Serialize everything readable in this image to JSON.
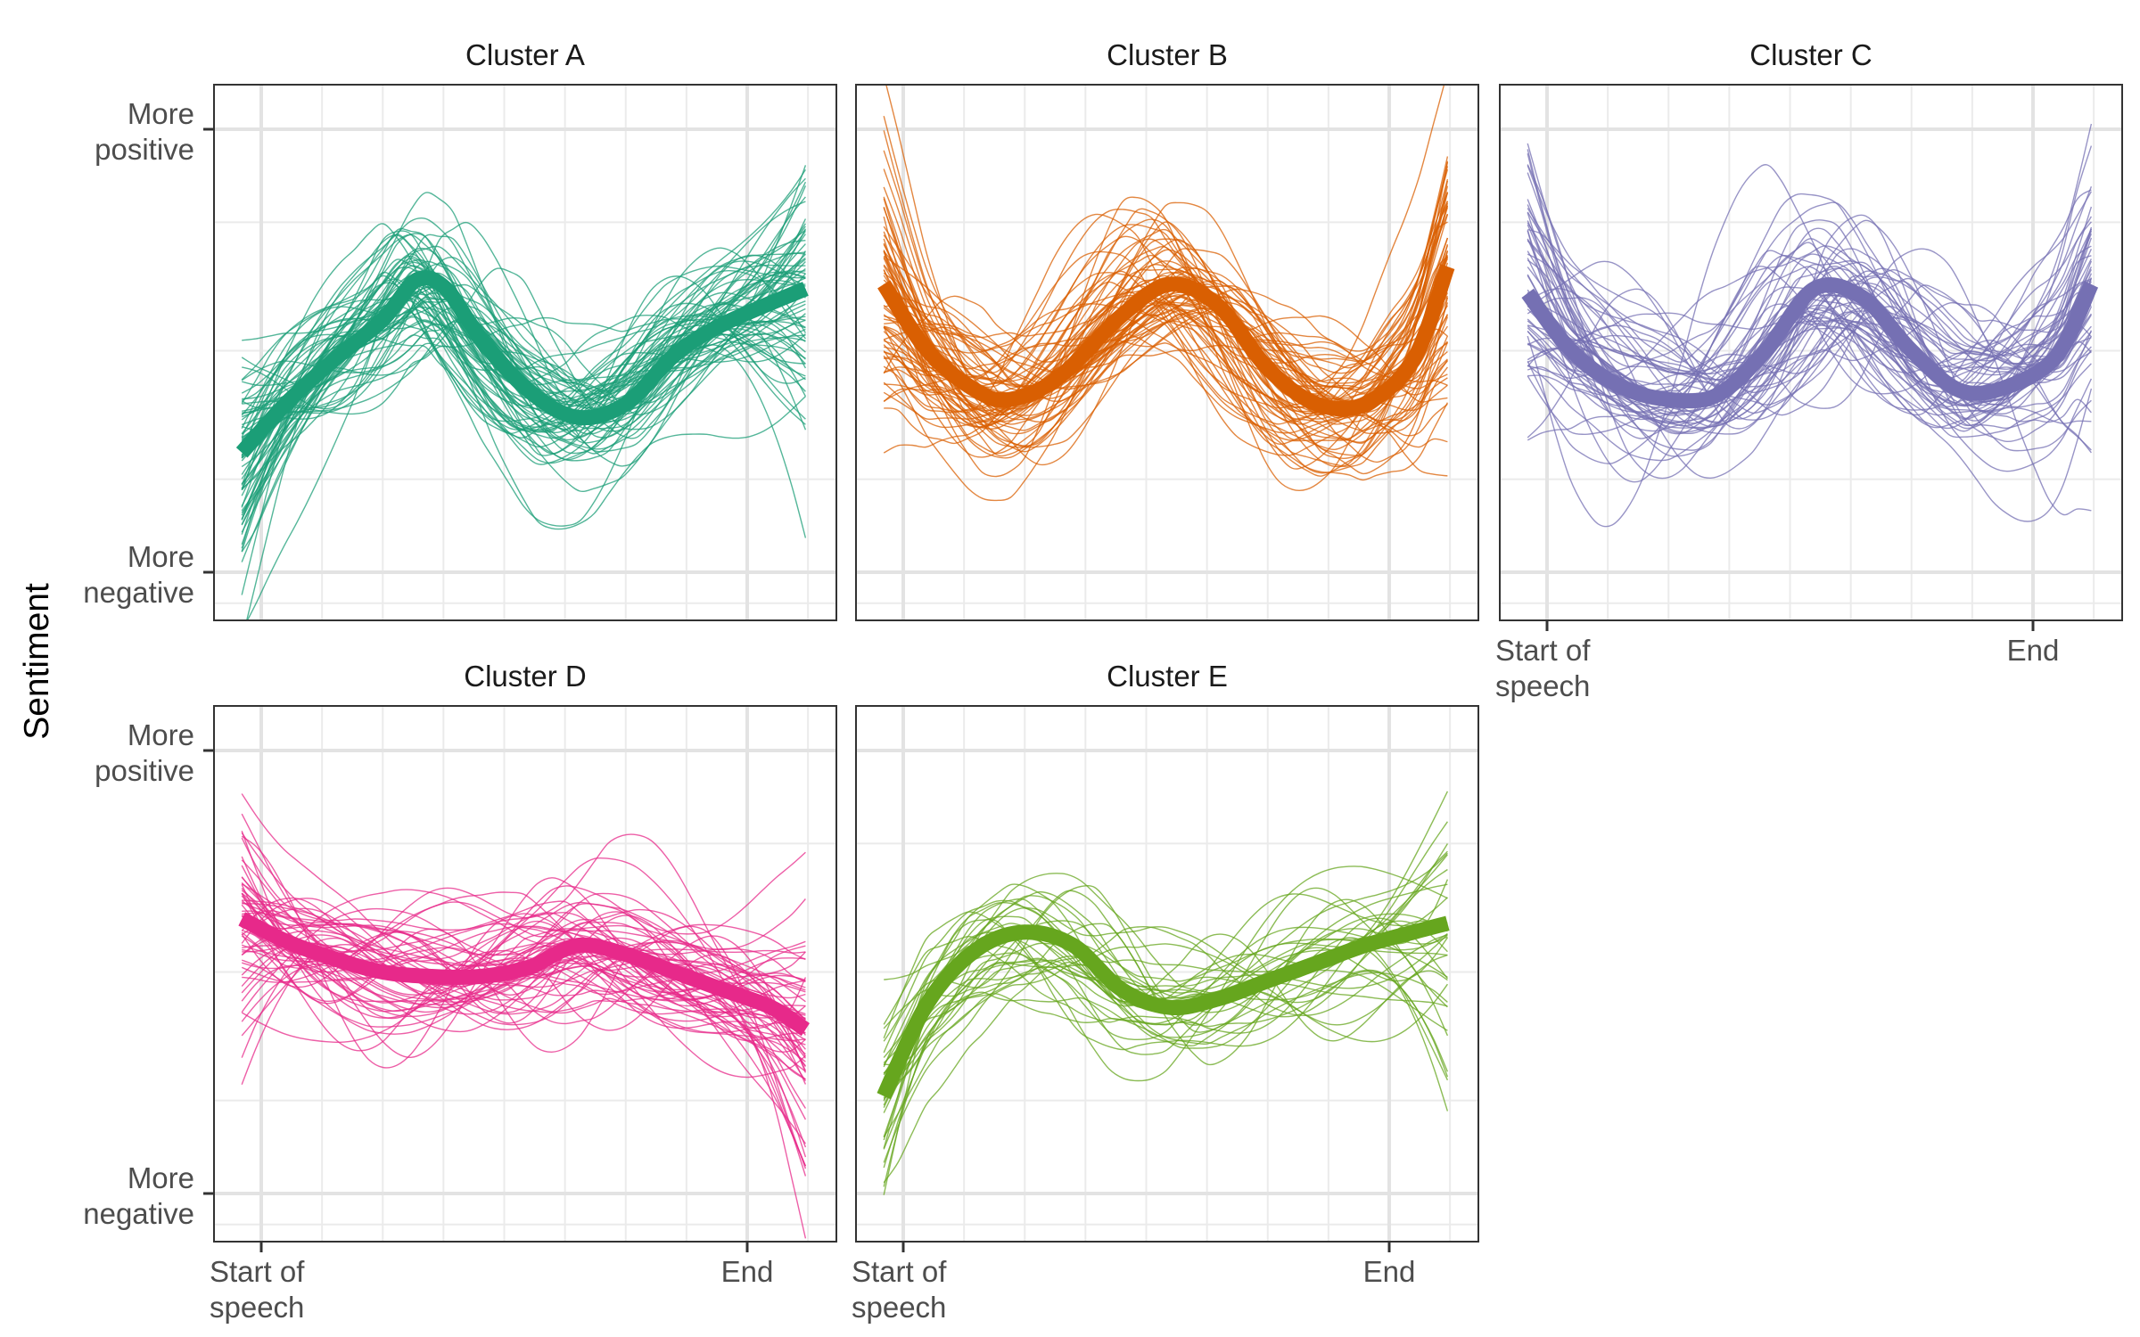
{
  "chart_data": {
    "type": "line",
    "facet_by": "cluster",
    "layout": "3 columns x 2 rows",
    "ylabel": "Sentiment",
    "xlabel": "",
    "x_range": [
      0,
      1
    ],
    "y_range": [
      0,
      1
    ],
    "x_ticks": [
      {
        "value": 0.0,
        "label": "Start of\nspeech"
      },
      {
        "value": 1.0,
        "label": "End"
      }
    ],
    "y_ticks": [
      {
        "value": 0.0,
        "label": "More\nnegative"
      },
      {
        "value": 1.0,
        "label": "More\npositive"
      }
    ],
    "individual_lines": "thin semi-transparent line per speech in cluster color",
    "mean_line": "thick line in cluster color",
    "grid": true,
    "panels": [
      {
        "title": "Cluster A",
        "color": "#1b9e77",
        "individual_count": 70,
        "mean": {
          "x": [
            -0.04,
            0.05,
            0.15,
            0.25,
            0.32,
            0.38,
            0.45,
            0.55,
            0.65,
            0.75,
            0.85,
            0.95,
            1.12
          ],
          "y": [
            0.27,
            0.38,
            0.48,
            0.57,
            0.66,
            0.64,
            0.53,
            0.41,
            0.35,
            0.38,
            0.49,
            0.56,
            0.64
          ]
        }
      },
      {
        "title": "Cluster B",
        "color": "#d95f02",
        "individual_count": 70,
        "mean": {
          "x": [
            -0.04,
            0.05,
            0.15,
            0.22,
            0.32,
            0.45,
            0.55,
            0.65,
            0.75,
            0.85,
            0.95,
            1.05,
            1.12
          ],
          "y": [
            0.65,
            0.5,
            0.41,
            0.39,
            0.44,
            0.58,
            0.65,
            0.6,
            0.46,
            0.38,
            0.38,
            0.48,
            0.69
          ]
        }
      },
      {
        "title": "Cluster C",
        "color": "#7570b3",
        "individual_count": 60,
        "mean": {
          "x": [
            -0.04,
            0.05,
            0.15,
            0.25,
            0.35,
            0.45,
            0.55,
            0.65,
            0.75,
            0.85,
            0.95,
            1.05,
            1.12
          ],
          "y": [
            0.63,
            0.5,
            0.42,
            0.39,
            0.4,
            0.5,
            0.64,
            0.62,
            0.5,
            0.41,
            0.42,
            0.49,
            0.65
          ]
        }
      },
      {
        "title": "Cluster D",
        "color": "#e7298a",
        "individual_count": 60,
        "mean": {
          "x": [
            -0.04,
            0.05,
            0.15,
            0.25,
            0.35,
            0.45,
            0.55,
            0.65,
            0.75,
            0.85,
            0.95,
            1.05,
            1.12
          ],
          "y": [
            0.62,
            0.57,
            0.53,
            0.5,
            0.49,
            0.49,
            0.51,
            0.56,
            0.54,
            0.5,
            0.46,
            0.42,
            0.37
          ]
        }
      },
      {
        "title": "Cluster E",
        "color": "#66a61e",
        "individual_count": 35,
        "mean": {
          "x": [
            -0.04,
            0.05,
            0.15,
            0.25,
            0.35,
            0.45,
            0.55,
            0.65,
            0.75,
            0.85,
            0.95,
            1.05,
            1.12
          ],
          "y": [
            0.22,
            0.43,
            0.55,
            0.59,
            0.56,
            0.46,
            0.42,
            0.44,
            0.48,
            0.52,
            0.56,
            0.59,
            0.61
          ]
        }
      }
    ]
  }
}
